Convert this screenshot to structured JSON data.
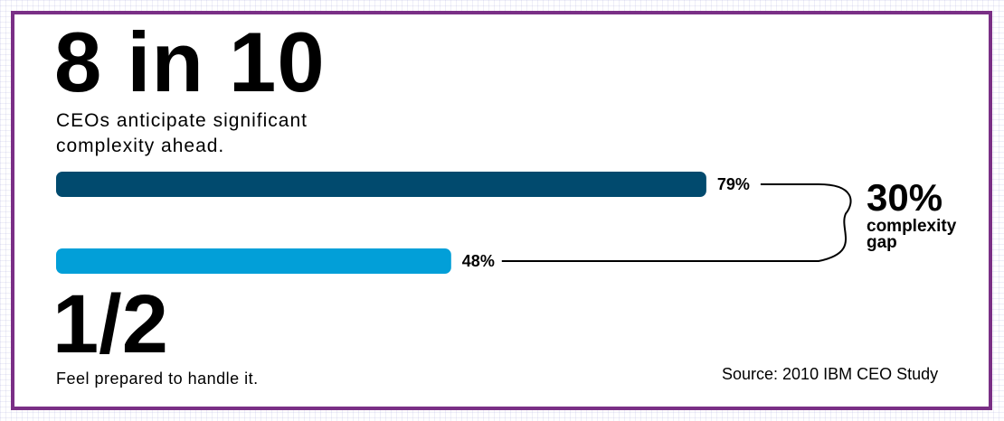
{
  "headline": "8 in 10",
  "caption_top": "CEOs anticipate significant complexity ahead.",
  "fraction": "1/2",
  "caption_bottom": "Feel prepared to handle it.",
  "source": "Source: 2010 IBM CEO Study",
  "colors": {
    "border": "#7a2f86",
    "bar_top": "#014a6e",
    "bar_bottom": "#029fd8"
  },
  "chart_data": {
    "type": "bar",
    "orientation": "horizontal",
    "values": [
      79,
      48
    ],
    "value_labels": [
      "79%",
      "48%"
    ],
    "xlim": [
      0,
      100
    ],
    "annotation": {
      "value": "30%",
      "label_line1": "complexity",
      "label_line2": "gap"
    }
  }
}
